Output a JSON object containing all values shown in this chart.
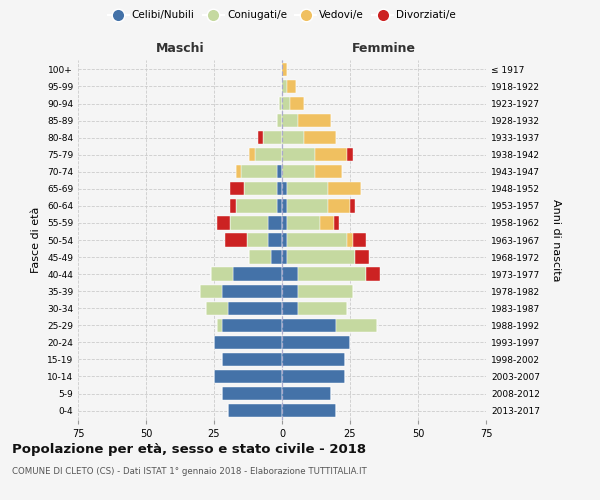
{
  "age_groups": [
    "0-4",
    "5-9",
    "10-14",
    "15-19",
    "20-24",
    "25-29",
    "30-34",
    "35-39",
    "40-44",
    "45-49",
    "50-54",
    "55-59",
    "60-64",
    "65-69",
    "70-74",
    "75-79",
    "80-84",
    "85-89",
    "90-94",
    "95-99",
    "100+"
  ],
  "birth_years": [
    "2013-2017",
    "2008-2012",
    "2003-2007",
    "1998-2002",
    "1993-1997",
    "1988-1992",
    "1983-1987",
    "1978-1982",
    "1973-1977",
    "1968-1972",
    "1963-1967",
    "1958-1962",
    "1953-1957",
    "1948-1952",
    "1943-1947",
    "1938-1942",
    "1933-1937",
    "1928-1932",
    "1923-1927",
    "1918-1922",
    "≤ 1917"
  ],
  "male": {
    "celibi": [
      20,
      22,
      25,
      22,
      25,
      22,
      20,
      22,
      18,
      4,
      5,
      5,
      2,
      2,
      2,
      0,
      0,
      0,
      0,
      0,
      0
    ],
    "coniugati": [
      0,
      0,
      0,
      0,
      0,
      2,
      8,
      8,
      8,
      8,
      8,
      14,
      15,
      12,
      13,
      10,
      7,
      2,
      1,
      0,
      0
    ],
    "vedovi": [
      0,
      0,
      0,
      0,
      0,
      0,
      0,
      0,
      0,
      0,
      0,
      0,
      0,
      0,
      2,
      2,
      0,
      0,
      0,
      0,
      0
    ],
    "divorziati": [
      0,
      0,
      0,
      0,
      0,
      0,
      0,
      0,
      0,
      0,
      8,
      5,
      2,
      5,
      0,
      0,
      2,
      0,
      0,
      0,
      0
    ]
  },
  "female": {
    "nubili": [
      20,
      18,
      23,
      23,
      25,
      20,
      6,
      6,
      6,
      2,
      2,
      2,
      2,
      2,
      0,
      0,
      0,
      0,
      0,
      0,
      0
    ],
    "coniugate": [
      0,
      0,
      0,
      0,
      0,
      15,
      18,
      20,
      25,
      25,
      22,
      12,
      15,
      15,
      12,
      12,
      8,
      6,
      3,
      2,
      0
    ],
    "vedove": [
      0,
      0,
      0,
      0,
      0,
      0,
      0,
      0,
      0,
      0,
      2,
      5,
      8,
      12,
      10,
      12,
      12,
      12,
      5,
      3,
      2
    ],
    "divorziate": [
      0,
      0,
      0,
      0,
      0,
      0,
      0,
      0,
      5,
      5,
      5,
      2,
      2,
      0,
      0,
      2,
      0,
      0,
      0,
      0,
      0
    ]
  },
  "color_celibi": "#4472a8",
  "color_coniugati": "#c5d9a0",
  "color_vedovi": "#f0c060",
  "color_divorziati": "#cc2222",
  "xlim": 75,
  "title": "Popolazione per età, sesso e stato civile - 2018",
  "subtitle": "COMUNE DI CLETO (CS) - Dati ISTAT 1° gennaio 2018 - Elaborazione TUTTITALIA.IT",
  "ylabel_left": "Fasce di età",
  "ylabel_right": "Anni di nascita",
  "xlabel_left": "Maschi",
  "xlabel_right": "Femmine",
  "background_color": "#f5f5f5"
}
